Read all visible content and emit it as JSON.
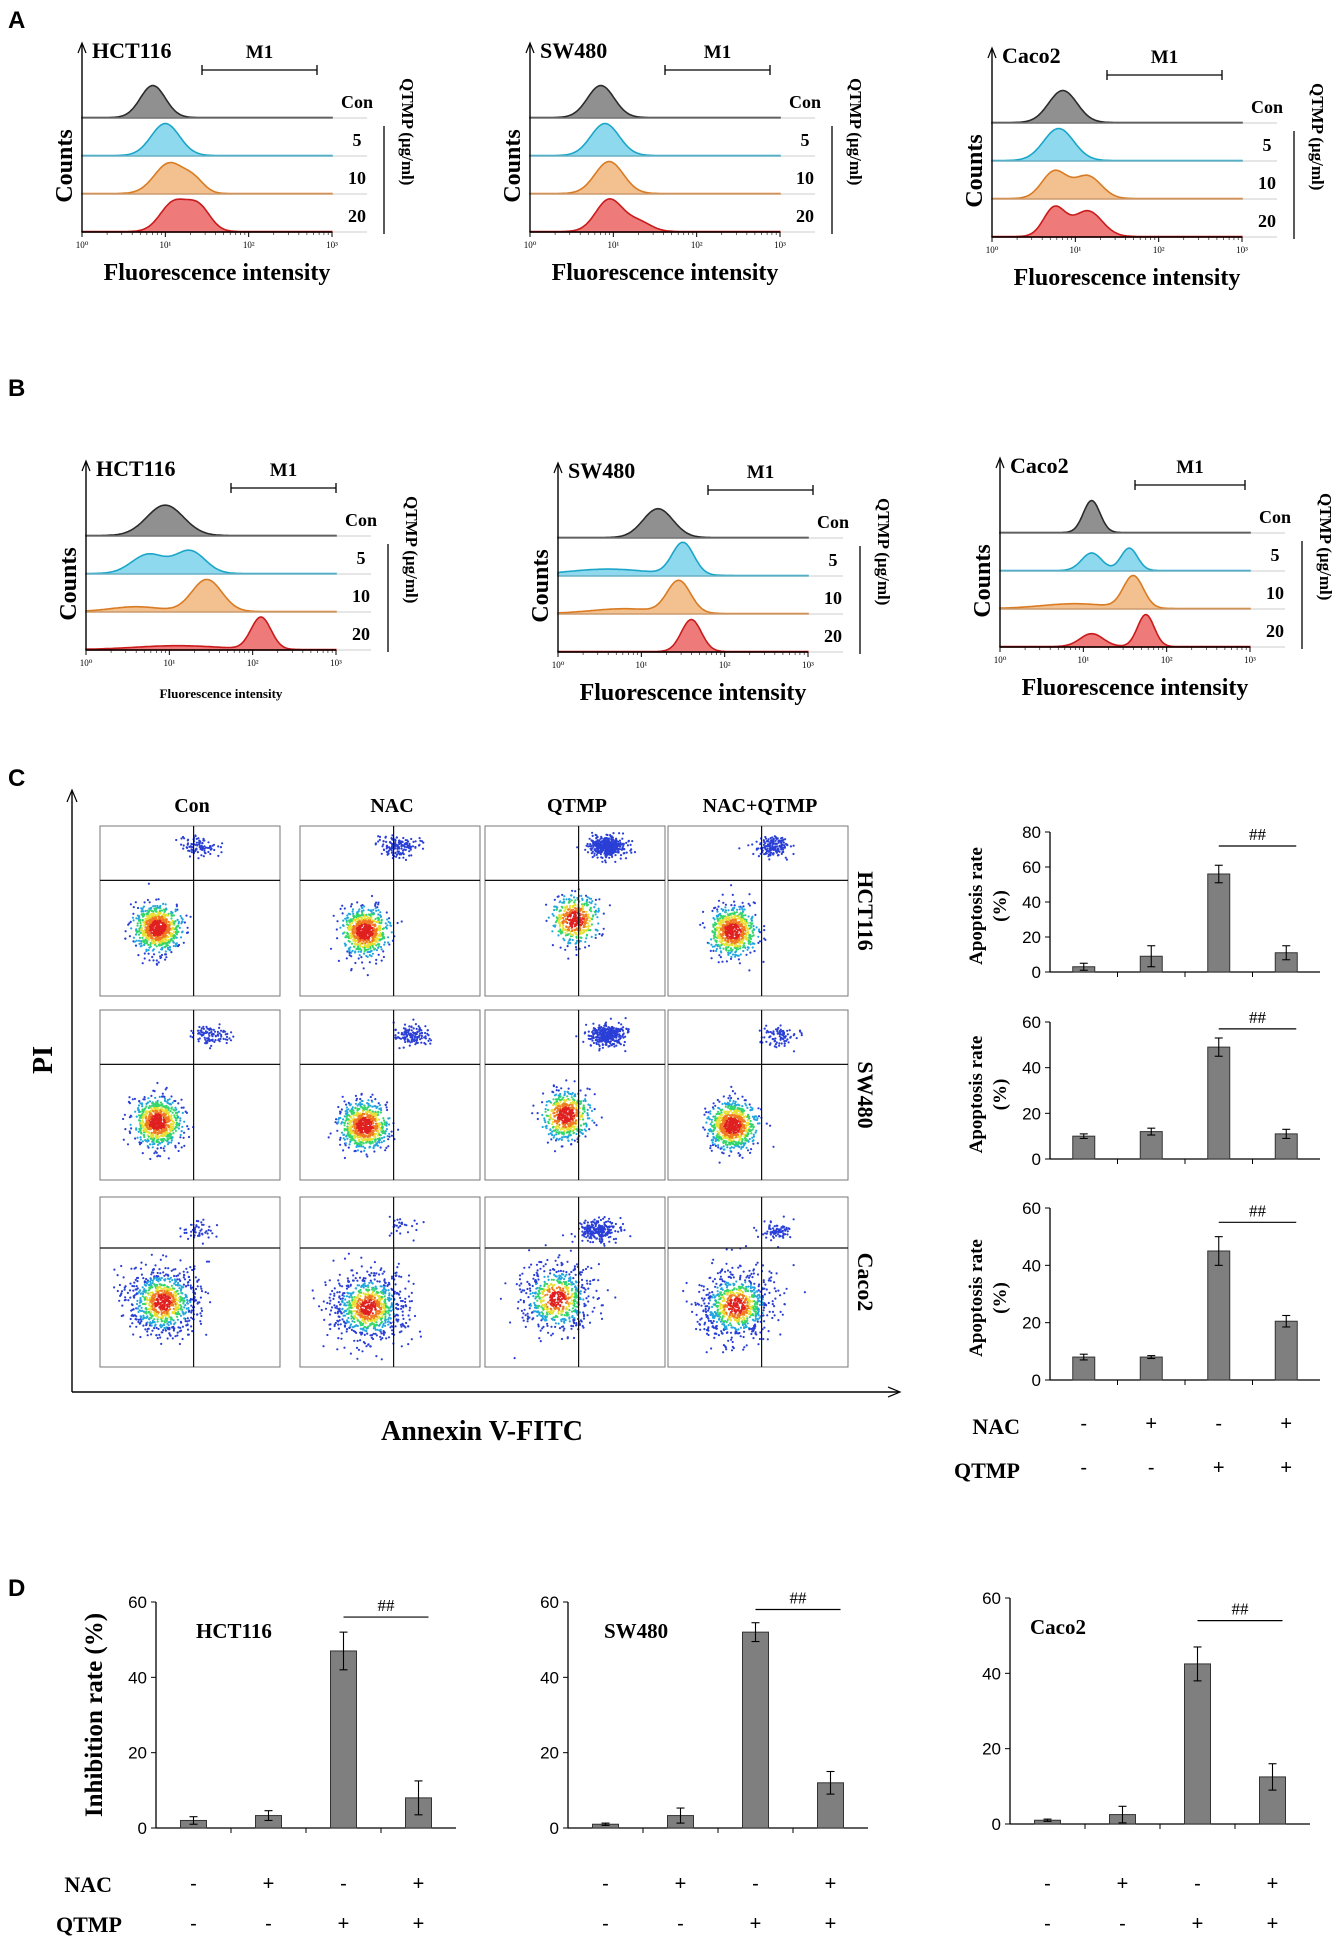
{
  "figure": {
    "panel_labels": [
      "A",
      "B",
      "C",
      "D"
    ],
    "histogram_axis": {
      "ylabel": "Counts",
      "xlabel": "Fluorescence intensity",
      "ticks": [
        "10⁰",
        "10¹",
        "10²",
        "10³"
      ]
    },
    "histogram_rows": [
      "Con",
      "5",
      "10",
      "20"
    ],
    "marker_label": "M1",
    "treatment_label": "QTMP (μg/ml)",
    "cells": [
      "HCT116",
      "SW480",
      "Caco2"
    ],
    "c_columns": [
      "Con",
      "NAC",
      "QTMP",
      "NAC+QTMP"
    ],
    "c_ylabel": "PI",
    "c_xlabel": "Annexin V-FITC",
    "bar_ylabel_c": [
      "Apoptosis rate",
      "(%)"
    ],
    "bar_ylabel_d": "Inhibition rate (%)",
    "sig": "##",
    "nac_label": "NAC",
    "qtmp_label": "QTMP",
    "nac_signs": [
      "-",
      "+",
      "-",
      "+"
    ],
    "qtmp_signs": [
      "-",
      "-",
      "+",
      "+"
    ],
    "colors": {
      "con": "#909090",
      "c5": "#8fd9ee",
      "c10": "#f3c08f",
      "c20": "#ee7a7a",
      "bar": "#7f7f7f"
    }
  },
  "chart_data": [
    {
      "type": "histogram_overlay",
      "panel": "A",
      "cell": "HCT116",
      "series": [
        "Con",
        "5",
        "10",
        "20"
      ],
      "xscale": "log",
      "xlim": [
        1,
        1000
      ]
    },
    {
      "type": "histogram_overlay",
      "panel": "A",
      "cell": "SW480",
      "series": [
        "Con",
        "5",
        "10",
        "20"
      ],
      "xscale": "log",
      "xlim": [
        1,
        1000
      ]
    },
    {
      "type": "histogram_overlay",
      "panel": "A",
      "cell": "Caco2",
      "series": [
        "Con",
        "5",
        "10",
        "20"
      ],
      "xscale": "log",
      "xlim": [
        1,
        1000
      ]
    },
    {
      "type": "histogram_overlay",
      "panel": "B",
      "cell": "HCT116",
      "series": [
        "Con",
        "5",
        "10",
        "20"
      ],
      "xscale": "log",
      "xlim": [
        1,
        1000
      ]
    },
    {
      "type": "histogram_overlay",
      "panel": "B",
      "cell": "SW480",
      "series": [
        "Con",
        "5",
        "10",
        "20"
      ],
      "xscale": "log",
      "xlim": [
        1,
        1000
      ]
    },
    {
      "type": "histogram_overlay",
      "panel": "B",
      "cell": "Caco2",
      "series": [
        "Con",
        "5",
        "10",
        "20"
      ],
      "xscale": "log",
      "xlim": [
        1,
        1000
      ]
    },
    {
      "type": "bar",
      "panel": "C",
      "cell": "HCT116",
      "ylabel": "Apoptosis rate (%)",
      "ylim": [
        0,
        80
      ],
      "yticks": [
        0,
        20,
        40,
        60,
        80
      ],
      "categories": [
        "Con",
        "NAC",
        "QTMP",
        "NAC+QTMP"
      ],
      "values": [
        3,
        9,
        56,
        11
      ],
      "errors": [
        2,
        6,
        5,
        4
      ]
    },
    {
      "type": "bar",
      "panel": "C",
      "cell": "SW480",
      "ylabel": "Apoptosis rate (%)",
      "ylim": [
        0,
        60
      ],
      "yticks": [
        0,
        20,
        40,
        60
      ],
      "categories": [
        "Con",
        "NAC",
        "QTMP",
        "NAC+QTMP"
      ],
      "values": [
        10,
        12,
        49,
        11
      ],
      "errors": [
        1,
        1.5,
        4,
        2
      ]
    },
    {
      "type": "bar",
      "panel": "C",
      "cell": "Caco2",
      "ylabel": "Apoptosis rate (%)",
      "ylim": [
        0,
        60
      ],
      "yticks": [
        0,
        20,
        40,
        60
      ],
      "categories": [
        "Con",
        "NAC",
        "QTMP",
        "NAC+QTMP"
      ],
      "values": [
        8,
        8,
        45,
        20.5
      ],
      "errors": [
        1,
        0.5,
        5,
        2
      ]
    },
    {
      "type": "bar",
      "panel": "D",
      "cell": "HCT116",
      "ylabel": "Inhibition rate (%)",
      "ylim": [
        0,
        60
      ],
      "yticks": [
        0,
        20,
        40,
        60
      ],
      "categories": [
        "Con",
        "NAC",
        "QTMP",
        "NAC+QTMP"
      ],
      "values": [
        2,
        3.3,
        47,
        8
      ],
      "errors": [
        1,
        1.3,
        5,
        4.5
      ]
    },
    {
      "type": "bar",
      "panel": "D",
      "cell": "SW480",
      "ylabel": "Inhibition rate (%)",
      "ylim": [
        0,
        60
      ],
      "yticks": [
        0,
        20,
        40,
        60
      ],
      "categories": [
        "Con",
        "NAC",
        "QTMP",
        "NAC+QTMP"
      ],
      "values": [
        1,
        3.3,
        52,
        12
      ],
      "errors": [
        0.3,
        2,
        2.5,
        3
      ]
    },
    {
      "type": "bar",
      "panel": "D",
      "cell": "Caco2",
      "ylabel": "Inhibition rate (%)",
      "ylim": [
        0,
        60
      ],
      "yticks": [
        0,
        20,
        40,
        60
      ],
      "categories": [
        "Con",
        "NAC",
        "QTMP",
        "NAC+QTMP"
      ],
      "values": [
        1,
        2.5,
        42.5,
        12.5
      ],
      "errors": [
        0.3,
        2.2,
        4.5,
        3.5
      ]
    }
  ]
}
